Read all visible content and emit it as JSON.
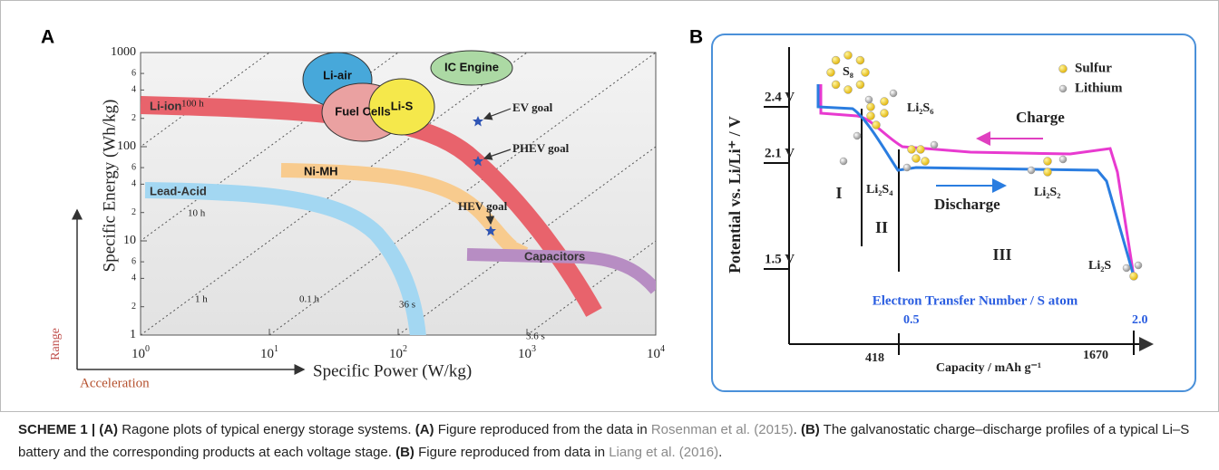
{
  "figure": {
    "panel_a": {
      "label": "A",
      "y_axis_title": "Specific Energy (Wh/kg)",
      "x_axis_title": "Specific Power (W/kg)",
      "y_ticks": [
        "1000",
        "100",
        "10",
        "1"
      ],
      "y_minor_ticks": [
        "6",
        "4",
        "2"
      ],
      "x_ticks": [
        {
          "base": "10",
          "exp": "0"
        },
        {
          "base": "10",
          "exp": "1"
        },
        {
          "base": "10",
          "exp": "2"
        },
        {
          "base": "10",
          "exp": "3"
        },
        {
          "base": "10",
          "exp": "4"
        }
      ],
      "range_label": "Range",
      "acceleration_label": "Acceleration",
      "time_lines": [
        "100 h",
        "10 h",
        "1 h",
        "0.1 h",
        "36 s",
        "3.6 s"
      ],
      "systems": [
        "Li-air",
        "IC Engine",
        "Fuel Cells",
        "Li-S",
        "Li-ion",
        "Ni-MH",
        "Lead-Acid",
        "Capacitors"
      ],
      "goals": [
        "EV goal",
        "PHEV goal",
        "HEV goal"
      ]
    },
    "panel_b": {
      "label": "B",
      "y_axis_title": "Potential vs. Li/Li⁺ / V",
      "voltages": [
        "2.4 V",
        "2.1 V",
        "1.5 V"
      ],
      "legend": [
        "Sulfur",
        "Lithium"
      ],
      "species": [
        "S₈",
        "Li₂S₆",
        "Li₂S₄",
        "Li₂S₂",
        "Li₂S"
      ],
      "regions": [
        "I",
        "II",
        "III"
      ],
      "charge": "Charge",
      "discharge": "Discharge",
      "electron_axis_title": "Electron Transfer Number / S atom",
      "electron_ticks": [
        "0.5",
        "2.0"
      ],
      "capacity_ticks": [
        "418",
        "1670"
      ],
      "x_axis_title": "Capacity / mAh g⁻¹"
    }
  },
  "caption": {
    "segments": [
      {
        "text": "SCHEME 1 | ",
        "style": "bold"
      },
      {
        "text": "(A)",
        "style": "bold"
      },
      {
        "text": " Ragone plots of typical energy storage systems. ",
        "style": "normal"
      },
      {
        "text": "(A)",
        "style": "bold"
      },
      {
        "text": " Figure reproduced from the data in ",
        "style": "normal"
      },
      {
        "text": "Rosenman et al. (2015)",
        "style": "link"
      },
      {
        "text": ". ",
        "style": "normal"
      },
      {
        "text": "(B)",
        "style": "bold"
      },
      {
        "text": " The galvanostatic charge–discharge profiles of a typical Li–S battery and the corresponding products at each voltage stage. ",
        "style": "normal"
      },
      {
        "text": "(B)",
        "style": "bold"
      },
      {
        "text": " Figure reproduced from data in ",
        "style": "normal"
      },
      {
        "text": "Liang et al. (2016)",
        "style": "link"
      },
      {
        "text": ".",
        "style": "normal"
      }
    ]
  }
}
